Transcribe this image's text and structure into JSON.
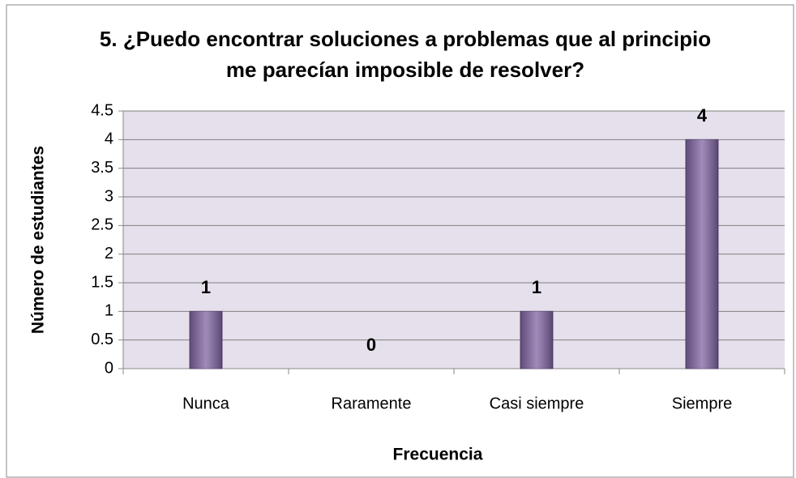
{
  "chart_data": {
    "type": "bar",
    "title": [
      "5. ¿Puedo encontrar soluciones a problemas que al principio",
      "me parecían imposible de resolver?"
    ],
    "x_label": "Frecuencia",
    "y_label": "Número de estudiantes",
    "categories": [
      "Nunca",
      "Raramente",
      "Casi siempre",
      "Siempre"
    ],
    "values": [
      1,
      0,
      1,
      4
    ],
    "color": "#8064a2",
    "ylim": [
      0,
      4.5
    ],
    "yticks": [
      0,
      0.5,
      1,
      1.5,
      2,
      2.5,
      3,
      3.5,
      4,
      4.5
    ],
    "grid": true
  }
}
